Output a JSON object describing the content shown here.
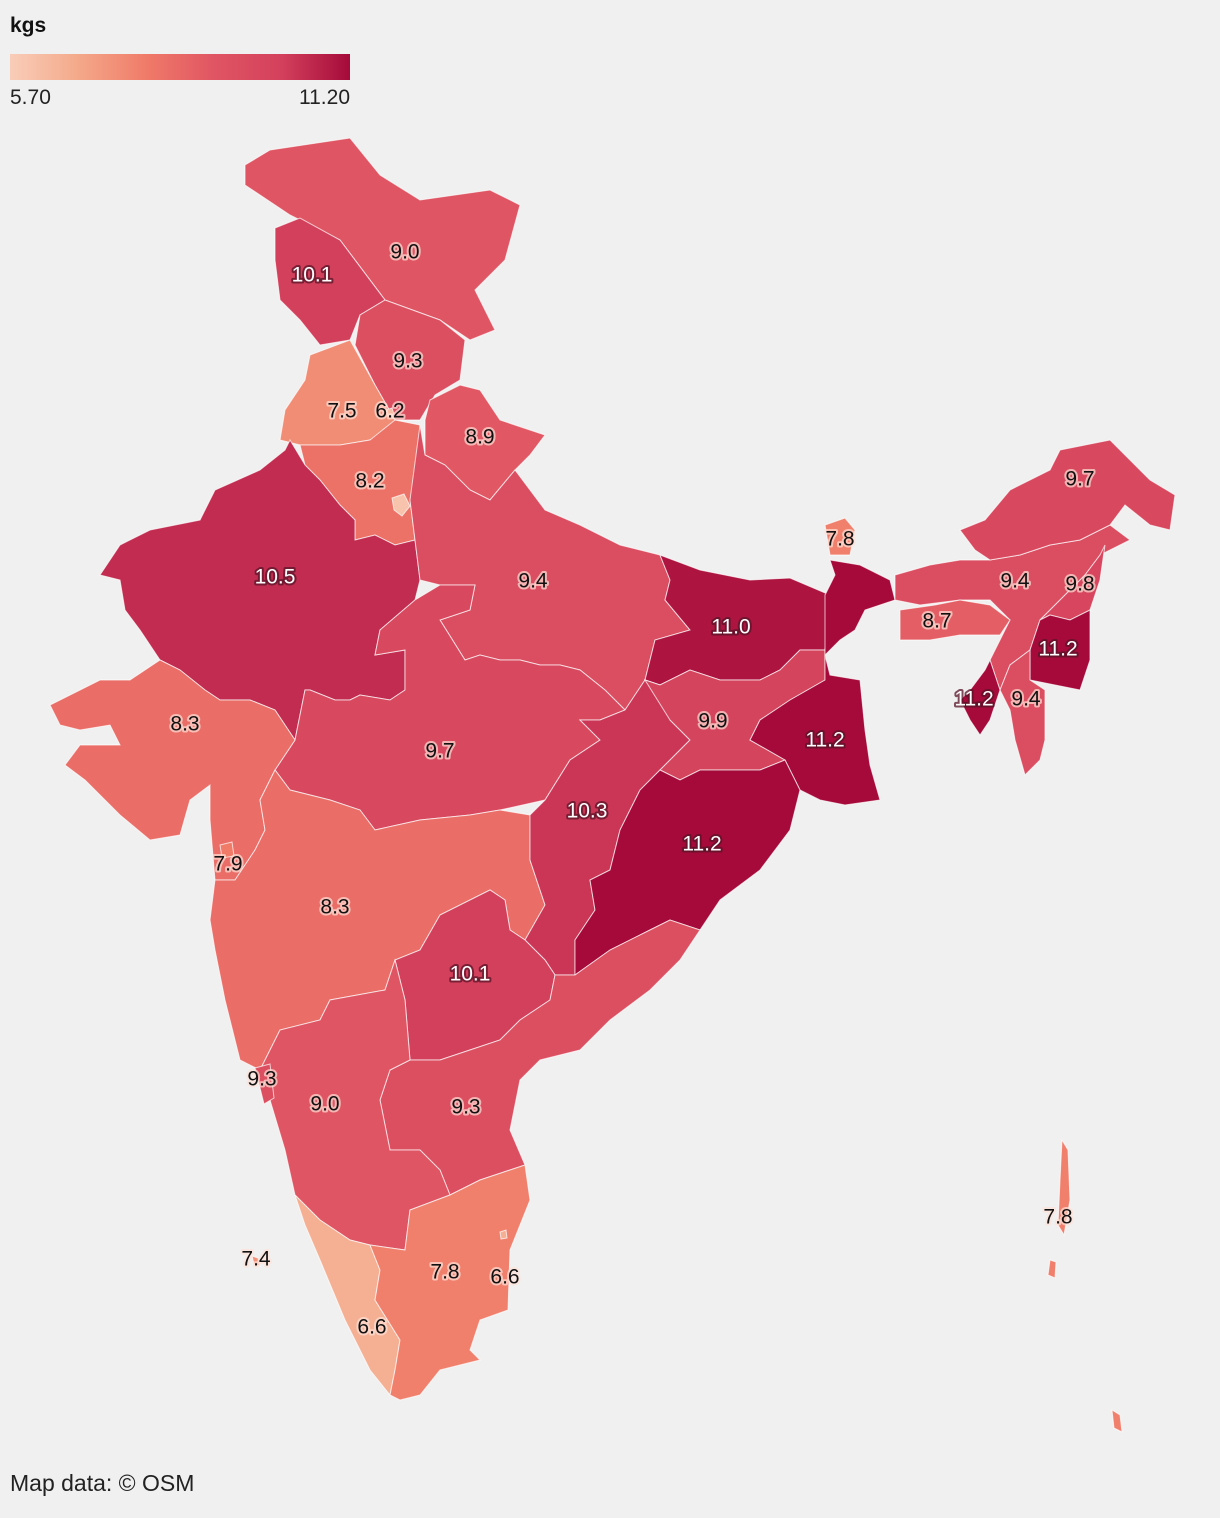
{
  "legend": {
    "title": "kgs",
    "min_label": "5.70",
    "max_label": "11.20",
    "min": 5.7,
    "max": 11.2,
    "color_stops": [
      "#f9cdb9",
      "#f4a98a",
      "#f07b69",
      "#e05563",
      "#d3405c",
      "#a50a3a"
    ]
  },
  "attribution": "Map data: © OSM",
  "chart_data": {
    "type": "choropleth",
    "unit": "kgs",
    "regions": [
      {
        "id": "ladakh",
        "value": 9.0,
        "label": "9.0"
      },
      {
        "id": "jammu-kashmir",
        "value": 10.1,
        "label": "10.1"
      },
      {
        "id": "himachal-pradesh",
        "value": 9.3,
        "label": "9.3"
      },
      {
        "id": "punjab",
        "value": 7.5,
        "label": "7.5"
      },
      {
        "id": "chandigarh",
        "value": 6.2,
        "label": "6.2"
      },
      {
        "id": "haryana",
        "value": 8.2,
        "label": "8.2"
      },
      {
        "id": "delhi",
        "value": 6.0,
        "label": ""
      },
      {
        "id": "uttarakhand",
        "value": 8.9,
        "label": "8.9"
      },
      {
        "id": "rajasthan",
        "value": 10.5,
        "label": "10.5"
      },
      {
        "id": "uttar-pradesh",
        "value": 9.4,
        "label": "9.4"
      },
      {
        "id": "bihar",
        "value": 11.0,
        "label": "11.0"
      },
      {
        "id": "madhya-pradesh",
        "value": 9.7,
        "label": "9.7"
      },
      {
        "id": "gujarat",
        "value": 8.3,
        "label": "8.3"
      },
      {
        "id": "dadra-daman",
        "value": 7.9,
        "label": "7.9"
      },
      {
        "id": "maharashtra",
        "value": 8.3,
        "label": "8.3"
      },
      {
        "id": "chhattisgarh",
        "value": 10.3,
        "label": "10.3"
      },
      {
        "id": "jharkhand",
        "value": 9.9,
        "label": "9.9"
      },
      {
        "id": "west-bengal",
        "value": 11.2,
        "label": "11.2"
      },
      {
        "id": "odisha",
        "value": 11.2,
        "label": "11.2"
      },
      {
        "id": "telangana",
        "value": 10.1,
        "label": "10.1"
      },
      {
        "id": "andhra-pradesh",
        "value": 9.3,
        "label": "9.3"
      },
      {
        "id": "karnataka",
        "value": 9.0,
        "label": "9.0"
      },
      {
        "id": "goa",
        "value": 9.3,
        "label": "9.3"
      },
      {
        "id": "kerala",
        "value": 6.6,
        "label": "6.6"
      },
      {
        "id": "tamil-nadu",
        "value": 7.8,
        "label": "7.8"
      },
      {
        "id": "puducherry",
        "value": 6.6,
        "label": "6.6"
      },
      {
        "id": "lakshadweep",
        "value": 7.4,
        "label": "7.4"
      },
      {
        "id": "sikkim",
        "value": 7.8,
        "label": "7.8"
      },
      {
        "id": "assam",
        "value": 9.4,
        "label": "9.4"
      },
      {
        "id": "meghalaya",
        "value": 8.7,
        "label": "8.7"
      },
      {
        "id": "arunachal-pradesh",
        "value": 9.7,
        "label": "9.7"
      },
      {
        "id": "nagaland",
        "value": 9.8,
        "label": "9.8"
      },
      {
        "id": "manipur",
        "value": 11.2,
        "label": "11.2"
      },
      {
        "id": "mizoram",
        "value": 9.4,
        "label": "9.4"
      },
      {
        "id": "tripura",
        "value": 11.2,
        "label": "11.2"
      },
      {
        "id": "andaman-nicobar",
        "value": 7.8,
        "label": "7.8"
      }
    ]
  }
}
